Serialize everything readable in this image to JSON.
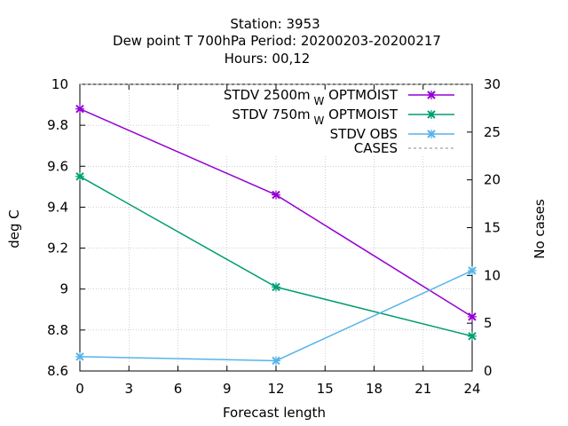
{
  "chart_data": {
    "type": "line",
    "title_lines": [
      "Station:      3953",
      "Dew point T 700hPa   Period: 20200203-20200217",
      "Hours:  00,12"
    ],
    "xlabel": "Forecast length",
    "ylabel": "deg C",
    "y2label": "No cases",
    "xlim": [
      0,
      24
    ],
    "ylim": [
      8.6,
      10
    ],
    "y2lim": [
      0,
      30
    ],
    "x_ticks": [
      "0",
      "3",
      "6",
      "9",
      "12",
      "15",
      "18",
      "21",
      "24"
    ],
    "y_ticks": [
      "8.6",
      "8.8",
      "9",
      "9.2",
      "9.4",
      "9.6",
      "9.8",
      "10"
    ],
    "y2_ticks": [
      "0",
      "5",
      "10",
      "15",
      "20",
      "25",
      "30"
    ],
    "grid": true,
    "legend_position": "top-right",
    "series": [
      {
        "name_main": "STDV 2500m",
        "name_sub": "W",
        "name_tail": "OPTMOIST",
        "color": "#9400d3",
        "axis": "y",
        "x": [
          0,
          12,
          24
        ],
        "values": [
          9.88,
          9.46,
          8.865
        ]
      },
      {
        "name_main": "STDV 750m",
        "name_sub": "W",
        "name_tail": "OPTMOIST",
        "color": "#009e73",
        "axis": "y",
        "x": [
          0,
          12,
          24
        ],
        "values": [
          9.55,
          9.01,
          8.77
        ]
      },
      {
        "name_main": "STDV OBS",
        "name_sub": "",
        "name_tail": "",
        "color": "#56b4e9",
        "axis": "y",
        "x": [
          0,
          12,
          24
        ],
        "values": [
          8.67,
          8.65,
          9.09
        ]
      },
      {
        "name_main": "CASES",
        "name_sub": "",
        "name_tail": "",
        "color": "#888888",
        "axis": "y2",
        "dashed": true,
        "x": [
          0,
          12,
          24
        ],
        "values": [
          30,
          30,
          30
        ]
      }
    ]
  }
}
